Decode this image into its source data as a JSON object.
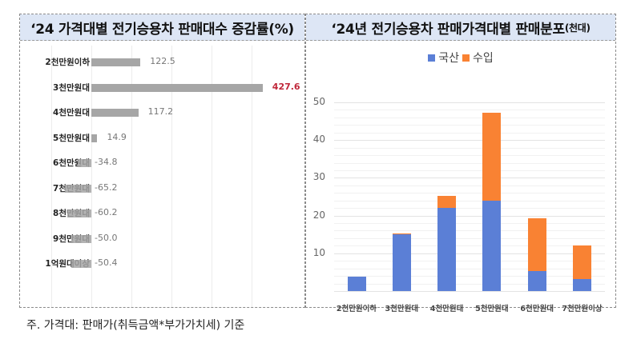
{
  "left_panel": {
    "title": "‘24 가격대별 전기승용차 판매대수 증감률(%)"
  },
  "right_panel": {
    "title_main": "‘24년 전기승용차 판매가격대별 판매분포",
    "title_unit": "(천대)"
  },
  "footnote": "주. 가격대: 판매가(취득금액*부가가치세) 기준",
  "colors": {
    "domestic": "#5b7fd6",
    "import": "#f98233",
    "bar_gray": "#a6a6a6",
    "highlight_red": "#c0273a",
    "title_bg": "#dde6f5"
  },
  "chart_data": [
    {
      "type": "bar",
      "orientation": "horizontal",
      "title": "‘24 가격대별 전기승용차 판매대수 증감률(%)",
      "xlabel": "",
      "ylabel": "",
      "categories": [
        "2천만원이하",
        "3천만원대",
        "4천만원대",
        "5천만원대",
        "6천만원대",
        "7천만원대",
        "8천만원대",
        "9천만원대",
        "1억원대이상"
      ],
      "values": [
        122.5,
        427.6,
        117.2,
        14.9,
        -34.8,
        -65.2,
        -60.2,
        -50.0,
        -50.4
      ],
      "value_labels": [
        "122.5",
        "427.6",
        "117.2",
        "14.9",
        "-34.8",
        "-65.2",
        "-60.2",
        "-50.0",
        "-50.4"
      ],
      "highlight_index": 1,
      "xlim": [
        -100,
        450
      ],
      "grid": "vertical",
      "legend": null
    },
    {
      "type": "bar",
      "stacked": true,
      "title": "‘24년 전기승용차 판매가격대별 판매분포(천대)",
      "xlabel": "",
      "ylabel": "",
      "categories": [
        "2천만원이하",
        "3천만원대",
        "4천만원대",
        "5천만원대",
        "6천만원대",
        "7천만원이상"
      ],
      "series": [
        {
          "name": "국산",
          "color": "#5b7fd6",
          "values": [
            3.8,
            15.0,
            22.0,
            24.0,
            5.3,
            3.2
          ]
        },
        {
          "name": "수입",
          "color": "#f98233",
          "values": [
            0.0,
            0.2,
            3.2,
            23.3,
            14.0,
            8.9
          ]
        }
      ],
      "ylim": [
        0,
        50
      ],
      "yticks": [
        10,
        20,
        30,
        40,
        50
      ],
      "grid": "horizontal",
      "legend_position": "top"
    }
  ]
}
